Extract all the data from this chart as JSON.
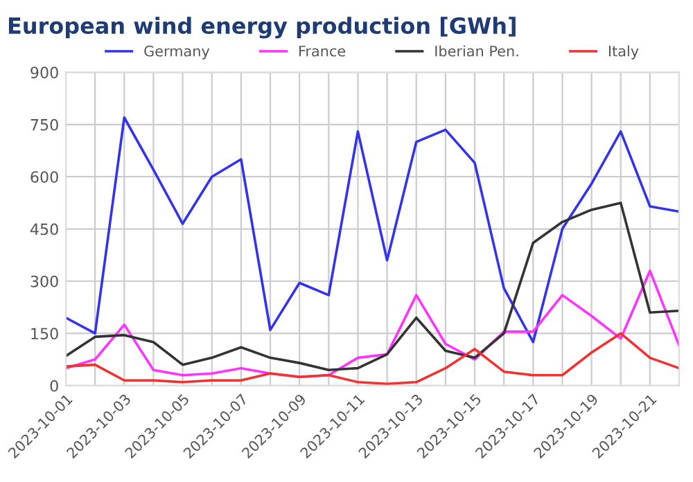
{
  "chart_data": {
    "type": "line",
    "title": "European wind energy production [GWh]",
    "x": [
      "2023-10-01",
      "2023-10-02",
      "2023-10-03",
      "2023-10-04",
      "2023-10-05",
      "2023-10-06",
      "2023-10-07",
      "2023-10-08",
      "2023-10-09",
      "2023-10-10",
      "2023-10-11",
      "2023-10-12",
      "2023-10-13",
      "2023-10-14",
      "2023-10-15",
      "2023-10-16",
      "2023-10-17",
      "2023-10-18",
      "2023-10-19",
      "2023-10-20",
      "2023-10-21",
      "2023-10-22"
    ],
    "series": [
      {
        "name": "Germany",
        "color": "#3333ee",
        "values": [
          195,
          150,
          770,
          620,
          465,
          600,
          650,
          160,
          295,
          260,
          730,
          360,
          700,
          735,
          640,
          280,
          125,
          450,
          580,
          730,
          515,
          500
        ]
      },
      {
        "name": "France",
        "color": "#ff33ff",
        "values": [
          50,
          75,
          175,
          45,
          30,
          35,
          50,
          35,
          25,
          30,
          80,
          90,
          260,
          120,
          75,
          155,
          155,
          260,
          200,
          135,
          330,
          115
        ]
      },
      {
        "name": "Iberian Pen.",
        "color": "#333333",
        "values": [
          85,
          140,
          145,
          125,
          60,
          80,
          110,
          80,
          65,
          45,
          50,
          90,
          195,
          100,
          80,
          150,
          410,
          470,
          505,
          525,
          210,
          215
        ]
      },
      {
        "name": "Italy",
        "color": "#ee3333",
        "values": [
          55,
          60,
          15,
          15,
          10,
          15,
          15,
          35,
          25,
          30,
          10,
          5,
          10,
          50,
          105,
          40,
          30,
          30,
          95,
          150,
          80,
          50
        ]
      }
    ],
    "xlim": [
      "2023-10-01",
      "2023-10-22"
    ],
    "xticks": [
      {
        "value": "2023-10-01",
        "label": "2023-10-01"
      },
      {
        "value": "2023-10-02",
        "label": null
      },
      {
        "value": "2023-10-03",
        "label": "2023-10-03"
      },
      {
        "value": "2023-10-04",
        "label": null
      },
      {
        "value": "2023-10-05",
        "label": "2023-10-05"
      },
      {
        "value": "2023-10-06",
        "label": null
      },
      {
        "value": "2023-10-07",
        "label": "2023-10-07"
      },
      {
        "value": "2023-10-08",
        "label": null
      },
      {
        "value": "2023-10-09",
        "label": "2023-10-09"
      },
      {
        "value": "2023-10-10",
        "label": null
      },
      {
        "value": "2023-10-11",
        "label": "2023-10-11"
      },
      {
        "value": "2023-10-12",
        "label": null
      },
      {
        "value": "2023-10-13",
        "label": "2023-10-13"
      },
      {
        "value": "2023-10-14",
        "label": null
      },
      {
        "value": "2023-10-15",
        "label": "2023-10-15"
      },
      {
        "value": "2023-10-16",
        "label": null
      },
      {
        "value": "2023-10-17",
        "label": "2023-10-17"
      },
      {
        "value": "2023-10-18",
        "label": null
      },
      {
        "value": "2023-10-19",
        "label": "2023-10-19"
      },
      {
        "value": "2023-10-20",
        "label": null
      },
      {
        "value": "2023-10-21",
        "label": "2023-10-21"
      },
      {
        "value": "2023-10-22",
        "label": null
      }
    ],
    "ylim": [
      0,
      900
    ],
    "yticks": [
      0,
      150,
      300,
      450,
      600,
      750,
      900
    ],
    "grid": true,
    "legend": "top",
    "marker": "none",
    "line_style": "solid"
  }
}
